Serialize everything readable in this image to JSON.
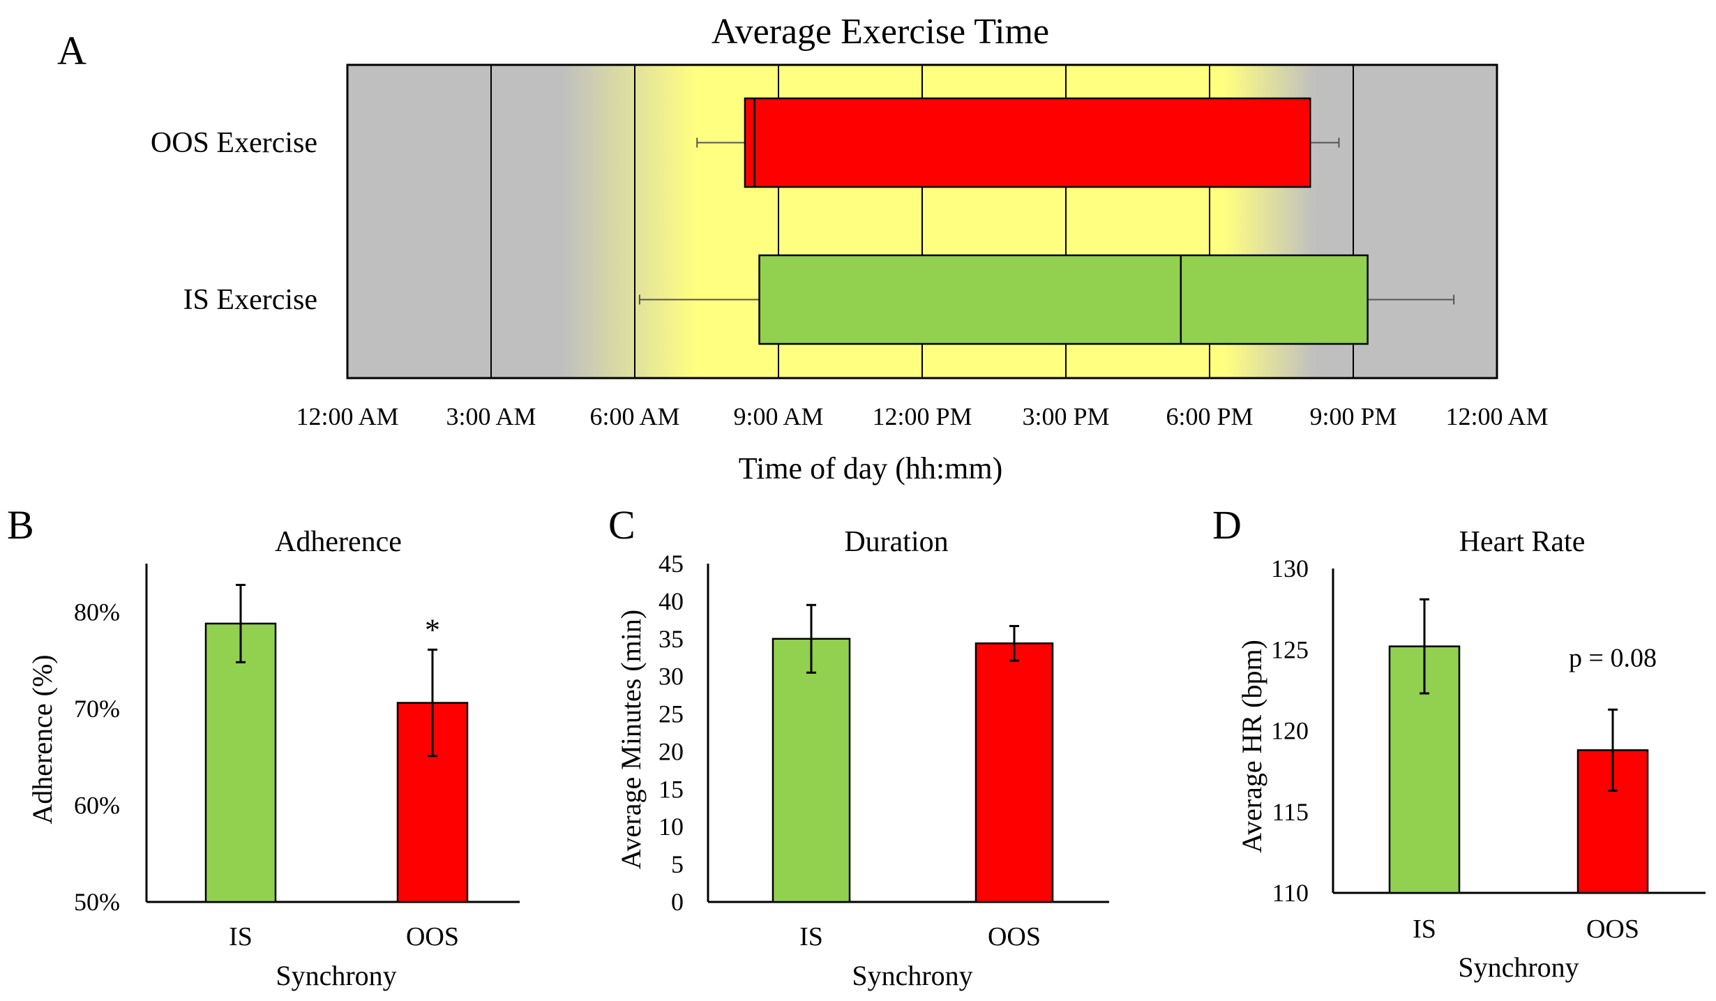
{
  "figure": {
    "panel_labels": [
      "A",
      "B",
      "C",
      "D"
    ],
    "colors": {
      "in_sync": "#92d050",
      "out_of_sync": "#ff0000",
      "night": "#bfbfbf",
      "daylight": "#ffff80",
      "axis": "#000000"
    }
  },
  "chart_data": [
    {
      "panel": "A",
      "type": "boxplot",
      "title": "Average Exercise Time",
      "xlabel": "Time of day (hh:mm)",
      "ylabel": "",
      "x_unit": "hours since midnight",
      "xlim": [
        0,
        24
      ],
      "xticks": [
        0,
        3,
        6,
        9,
        12,
        15,
        18,
        21,
        24
      ],
      "xtick_labels": [
        "12:00 AM",
        "3:00 AM",
        "6:00 AM",
        "9:00 AM",
        "12:00 PM",
        "3:00 PM",
        "6:00 PM",
        "9:00 PM",
        "12:00 AM"
      ],
      "grid": true,
      "background_bands": [
        {
          "name": "night",
          "from": 0,
          "to": 4.5
        },
        {
          "name": "dawn",
          "from": 4.5,
          "to": 7.3
        },
        {
          "name": "daylight",
          "from": 7.3,
          "to": 18.3
        },
        {
          "name": "dusk",
          "from": 18.3,
          "to": 20.2
        },
        {
          "name": "night",
          "from": 20.2,
          "to": 24
        }
      ],
      "series": [
        {
          "name": "OOS Exercise",
          "whisker_low": 7.3,
          "q1": 8.3,
          "median": 8.5,
          "q3": 20.1,
          "whisker_high": 20.7
        },
        {
          "name": "IS Exercise",
          "whisker_low": 6.1,
          "q1": 8.6,
          "median": 17.4,
          "q3": 21.3,
          "whisker_high": 23.1
        }
      ]
    },
    {
      "panel": "B",
      "type": "bar",
      "title": "Adherence",
      "xlabel": "Synchrony",
      "ylabel": "Adherence (%)",
      "categories": [
        "IS",
        "OOS"
      ],
      "values": [
        78.8,
        70.6
      ],
      "error": [
        4.0,
        5.5
      ],
      "ylim": [
        50,
        85
      ],
      "yticks": [
        50,
        60,
        70,
        80
      ],
      "ytick_labels": [
        "50%",
        "60%",
        "70%",
        "80%"
      ],
      "annotations": [
        {
          "category": "OOS",
          "text": "*"
        }
      ]
    },
    {
      "panel": "C",
      "type": "bar",
      "title": "Duration",
      "xlabel": "Synchrony",
      "ylabel": "Average Minutes (min)",
      "categories": [
        "IS",
        "OOS"
      ],
      "values": [
        35.0,
        34.4
      ],
      "error": [
        4.5,
        2.3
      ],
      "ylim": [
        0,
        45
      ],
      "yticks": [
        0,
        5,
        10,
        15,
        20,
        25,
        30,
        35,
        40,
        45
      ],
      "ytick_labels": [
        "0",
        "5",
        "10",
        "15",
        "20",
        "25",
        "30",
        "35",
        "40",
        "45"
      ],
      "annotations": []
    },
    {
      "panel": "D",
      "type": "bar",
      "title": "Heart Rate",
      "xlabel": "Synchrony",
      "ylabel": "Average HR (bpm)",
      "categories": [
        "IS",
        "OOS"
      ],
      "values": [
        125.2,
        118.8
      ],
      "error": [
        2.9,
        2.5
      ],
      "ylim": [
        110,
        130
      ],
      "yticks": [
        110,
        115,
        120,
        125,
        130
      ],
      "ytick_labels": [
        "110",
        "115",
        "120",
        "125",
        "130"
      ],
      "annotations": [
        {
          "category": "OOS",
          "text": "p = 0.08"
        }
      ]
    }
  ]
}
